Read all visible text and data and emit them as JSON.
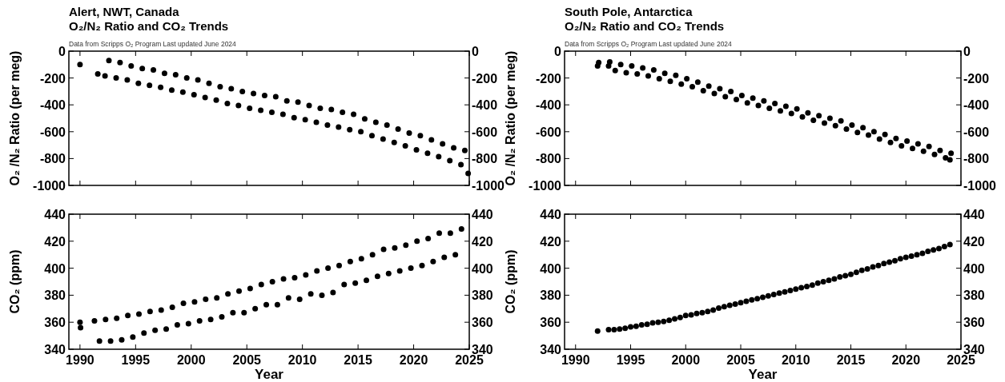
{
  "chart_data": [
    {
      "type": "scatter",
      "title": "Alert, NWT, Canada",
      "subtitle": "O₂/N₂ Ratio and CO₂ Trends",
      "annotations": [
        "Data from Scripps O₂ Program   Last updated June 2024"
      ],
      "ylabel": "O₂ /N₂ Ratio (per meg)",
      "marker": "circle",
      "tick_labels": "y",
      "xlim": [
        1989,
        2025
      ],
      "xticks": [
        1990,
        1995,
        2000,
        2005,
        2010,
        2015,
        2020,
        2025
      ],
      "ylim": [
        -1000,
        0
      ],
      "yticks": [
        -1000,
        -800,
        -600,
        -400,
        -200,
        0
      ],
      "y2lim": [
        -1000,
        0
      ],
      "y2ticks": [
        -1000,
        -800,
        -600,
        -400,
        -200,
        0
      ],
      "series": [
        {
          "color": "#000000",
          "x": [
            1990.0,
            1991.6,
            1992.25,
            1992.6,
            1993.25,
            1993.6,
            1994.25,
            1994.6,
            1995.25,
            1995.6,
            1996.25,
            1996.6,
            1997.25,
            1997.6,
            1998.25,
            1998.6,
            1999.25,
            1999.6,
            2000.25,
            2000.6,
            2001.25,
            2001.6,
            2002.25,
            2002.6,
            2003.25,
            2003.6,
            2004.25,
            2004.6,
            2005.25,
            2005.6,
            2006.25,
            2006.6,
            2007.25,
            2007.6,
            2008.25,
            2008.6,
            2009.25,
            2009.6,
            2010.25,
            2010.6,
            2011.25,
            2011.6,
            2012.25,
            2012.6,
            2013.25,
            2013.6,
            2014.25,
            2014.6,
            2015.25,
            2015.6,
            2016.25,
            2016.6,
            2017.25,
            2017.6,
            2018.25,
            2018.6,
            2019.25,
            2019.6,
            2020.25,
            2020.6,
            2021.25,
            2021.6,
            2022.25,
            2022.6,
            2023.25,
            2023.6,
            2024.25,
            2024.6,
            2024.9
          ],
          "values": [
            -100,
            -170,
            -185,
            -70,
            -200,
            -85,
            -215,
            -110,
            -240,
            -130,
            -255,
            -140,
            -270,
            -165,
            -290,
            -175,
            -305,
            -200,
            -325,
            -215,
            -345,
            -240,
            -365,
            -265,
            -390,
            -280,
            -405,
            -300,
            -425,
            -315,
            -440,
            -330,
            -455,
            -340,
            -470,
            -370,
            -495,
            -380,
            -510,
            -405,
            -530,
            -425,
            -550,
            -435,
            -565,
            -455,
            -585,
            -470,
            -600,
            -505,
            -630,
            -530,
            -655,
            -550,
            -680,
            -580,
            -705,
            -610,
            -735,
            -630,
            -760,
            -660,
            -785,
            -690,
            -815,
            -720,
            -845,
            -740,
            -910
          ]
        }
      ]
    },
    {
      "type": "scatter",
      "title": "South Pole, Antarctica",
      "subtitle": "O₂/N₂ Ratio and CO₂ Trends",
      "annotations": [
        "Data from Scripps O₂ Program   Last updated June 2024"
      ],
      "ylabel": "O₂ /N₂ Ratio (per meg)",
      "marker": "circle",
      "tick_labels": "y",
      "xlim": [
        1989,
        2025
      ],
      "xticks": [
        1990,
        1995,
        2000,
        2005,
        2010,
        2015,
        2020,
        2025
      ],
      "ylim": [
        -1000,
        0
      ],
      "yticks": [
        -1000,
        -800,
        -600,
        -400,
        -200,
        0
      ],
      "y2lim": [
        -1000,
        0
      ],
      "y2ticks": [
        -1000,
        -800,
        -600,
        -400,
        -200,
        0
      ],
      "series": [
        {
          "color": "#000000",
          "x": [
            1992.0,
            1992.1,
            1993.0,
            1993.1,
            1993.6,
            1994.1,
            1994.6,
            1995.1,
            1995.6,
            1996.1,
            1996.6,
            1997.1,
            1997.6,
            1998.1,
            1998.6,
            1999.1,
            1999.6,
            2000.1,
            2000.6,
            2001.1,
            2001.6,
            2002.1,
            2002.6,
            2003.1,
            2003.6,
            2004.1,
            2004.6,
            2005.1,
            2005.6,
            2006.1,
            2006.6,
            2007.1,
            2007.6,
            2008.1,
            2008.6,
            2009.1,
            2009.6,
            2010.1,
            2010.6,
            2011.1,
            2011.6,
            2012.1,
            2012.6,
            2013.1,
            2013.6,
            2014.1,
            2014.6,
            2015.1,
            2015.6,
            2016.1,
            2016.6,
            2017.1,
            2017.6,
            2018.1,
            2018.6,
            2019.1,
            2019.6,
            2020.1,
            2020.6,
            2021.1,
            2021.6,
            2022.1,
            2022.6,
            2023.1,
            2023.6,
            2024.0,
            2024.1
          ],
          "values": [
            -110,
            -85,
            -110,
            -80,
            -145,
            -100,
            -160,
            -110,
            -170,
            -125,
            -185,
            -140,
            -205,
            -165,
            -225,
            -180,
            -245,
            -205,
            -265,
            -230,
            -295,
            -260,
            -315,
            -280,
            -340,
            -300,
            -360,
            -330,
            -385,
            -350,
            -405,
            -370,
            -425,
            -390,
            -445,
            -410,
            -465,
            -430,
            -490,
            -460,
            -515,
            -480,
            -535,
            -500,
            -555,
            -520,
            -580,
            -550,
            -605,
            -570,
            -625,
            -600,
            -655,
            -620,
            -680,
            -650,
            -705,
            -670,
            -725,
            -690,
            -745,
            -710,
            -770,
            -740,
            -795,
            -810,
            -760
          ]
        }
      ]
    },
    {
      "type": "scatter",
      "xlabel": "Year",
      "ylabel": "CO₂ (ppm)",
      "marker": "circle",
      "xlim": [
        1989,
        2025
      ],
      "xticks": [
        1990,
        1995,
        2000,
        2005,
        2010,
        2015,
        2020,
        2025
      ],
      "ylim": [
        340,
        440
      ],
      "yticks": [
        340,
        360,
        380,
        400,
        420,
        440
      ],
      "y2lim": [
        340,
        440
      ],
      "y2ticks": [
        340,
        360,
        380,
        400,
        420,
        440
      ],
      "series": [
        {
          "color": "#000000",
          "x": [
            1990.0,
            1990.05,
            1991.3,
            1991.75,
            1992.3,
            1992.75,
            1993.3,
            1993.75,
            1994.3,
            1994.75,
            1995.3,
            1995.75,
            1996.3,
            1996.75,
            1997.3,
            1997.75,
            1998.3,
            1998.75,
            1999.3,
            1999.75,
            2000.3,
            2000.75,
            2001.3,
            2001.75,
            2002.3,
            2002.75,
            2003.3,
            2003.75,
            2004.3,
            2004.75,
            2005.3,
            2005.75,
            2006.3,
            2006.75,
            2007.3,
            2007.75,
            2008.3,
            2008.75,
            2009.3,
            2009.75,
            2010.3,
            2010.75,
            2011.3,
            2011.75,
            2012.3,
            2012.75,
            2013.3,
            2013.75,
            2014.3,
            2014.75,
            2015.3,
            2015.75,
            2016.3,
            2016.75,
            2017.3,
            2017.75,
            2018.3,
            2018.75,
            2019.3,
            2019.75,
            2020.3,
            2020.75,
            2021.3,
            2021.75,
            2022.3,
            2022.75,
            2023.3,
            2023.75,
            2024.3
          ],
          "values": [
            360,
            356,
            361,
            346,
            362,
            346,
            363,
            347,
            365,
            349,
            366,
            352,
            368,
            354,
            369,
            355,
            371,
            358,
            374,
            359,
            375,
            361,
            377,
            362,
            378,
            364,
            381,
            367,
            383,
            367,
            385,
            370,
            388,
            373,
            390,
            373,
            392,
            378,
            393,
            377,
            395,
            381,
            398,
            380,
            400,
            382,
            402,
            388,
            405,
            389,
            407,
            391,
            410,
            394,
            414,
            396,
            415,
            398,
            417,
            400,
            420,
            402,
            422,
            405,
            426,
            408,
            426,
            410,
            429
          ]
        }
      ]
    },
    {
      "type": "scatter",
      "xlabel": "Year",
      "ylabel": "CO₂ (ppm)",
      "marker": "circle",
      "xlim": [
        1989,
        2025
      ],
      "xticks": [
        1990,
        1995,
        2000,
        2005,
        2010,
        2015,
        2020,
        2025
      ],
      "ylim": [
        340,
        440
      ],
      "yticks": [
        340,
        360,
        380,
        400,
        420,
        440
      ],
      "y2lim": [
        340,
        440
      ],
      "y2ticks": [
        340,
        360,
        380,
        400,
        420,
        440
      ],
      "series": [
        {
          "color": "#000000",
          "x": [
            1992.0,
            1993.0,
            1993.5,
            1994.0,
            1994.5,
            1995.0,
            1995.5,
            1996.0,
            1996.5,
            1997.0,
            1997.5,
            1998.0,
            1998.5,
            1999.0,
            1999.5,
            2000.0,
            2000.5,
            2001.0,
            2001.5,
            2002.0,
            2002.5,
            2003.0,
            2003.5,
            2004.0,
            2004.5,
            2005.0,
            2005.5,
            2006.0,
            2006.5,
            2007.0,
            2007.5,
            2008.0,
            2008.5,
            2009.0,
            2009.5,
            2010.0,
            2010.5,
            2011.0,
            2011.5,
            2012.0,
            2012.5,
            2013.0,
            2013.5,
            2014.0,
            2014.5,
            2015.0,
            2015.5,
            2016.0,
            2016.5,
            2017.0,
            2017.5,
            2018.0,
            2018.5,
            2019.0,
            2019.5,
            2020.0,
            2020.5,
            2021.0,
            2021.5,
            2022.0,
            2022.5,
            2023.0,
            2023.5,
            2024.0
          ],
          "values": [
            353.5,
            354.5,
            354.5,
            355,
            355.5,
            356.5,
            357,
            358,
            358.5,
            359.5,
            360,
            360.5,
            361.5,
            362.5,
            363.5,
            365,
            365.5,
            366.5,
            367,
            368,
            369,
            370.5,
            371.5,
            372.5,
            373.5,
            374.5,
            375.5,
            376.5,
            377.5,
            378.5,
            379.5,
            380.5,
            381.5,
            382.5,
            383.5,
            384.5,
            385.5,
            386.5,
            387.5,
            389,
            390,
            391,
            392,
            393.5,
            394.5,
            395.5,
            397,
            398.5,
            399.5,
            401,
            402,
            403.5,
            404.5,
            405.5,
            407,
            408,
            409,
            410,
            411,
            412.5,
            413.5,
            414.5,
            416,
            417.5
          ]
        }
      ]
    }
  ]
}
